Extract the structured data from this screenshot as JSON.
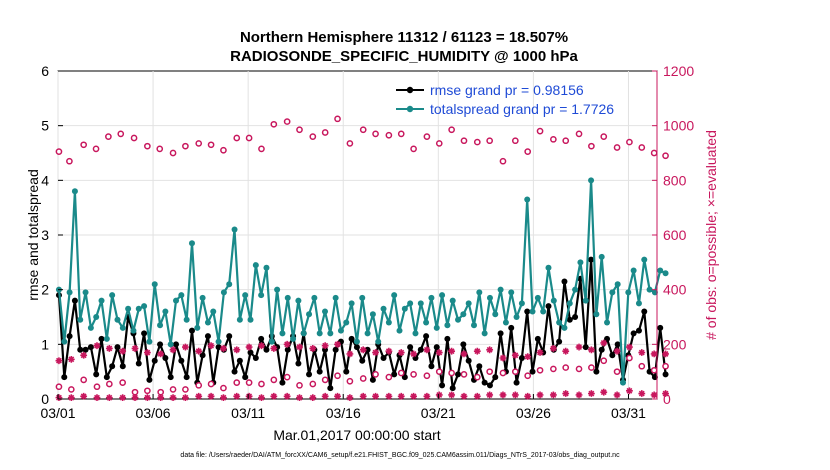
{
  "colors": {
    "rmse": "#000000",
    "spread": "#1a8a8a",
    "obs": "#c8175d",
    "legend_text": "#1f4bd6"
  },
  "chart_data": {
    "type": "line",
    "title": "Northern Hemisphere 11312 / 61123 = 18.507%",
    "subtitle": "RADIOSONDE_SPECIFIC_HUMIDITY @ 1000 hPa",
    "xlabel": "Mar.01,2017 00:00:00 start",
    "ylabel": "rmse and totalspread",
    "y2label": "# of obs: o=possible; ×=evaluated",
    "footnote": "data file: /Users/raeder/DAI/ATM_forcXX/CAM6_setup/f.e21.FHIST_BGC.f09_025.CAM6assim.011/Diags_NTrS_2017-03/obs_diag_output.nc",
    "xlim": [
      0,
      31.5
    ],
    "ylim": [
      0,
      6
    ],
    "y2lim": [
      0,
      1200
    ],
    "xticks": [
      0,
      5,
      10,
      15,
      20,
      25,
      30
    ],
    "xtick_labels": [
      "03/01",
      "03/06",
      "03/11",
      "03/16",
      "03/21",
      "03/26",
      "03/31"
    ],
    "yticks": [
      0,
      1,
      2,
      3,
      4,
      5,
      6
    ],
    "y2ticks": [
      0,
      200,
      400,
      600,
      800,
      1000,
      1200
    ],
    "legend": [
      "rmse grand pr = 0.98156",
      "totalspread grand pr = 1.7726"
    ],
    "series": [
      {
        "name": "rmse",
        "axis": "left",
        "style": "line-dot",
        "values": [
          1.9,
          0.4,
          1.15,
          1.8,
          0.9,
          0.9,
          0.95,
          0.45,
          1.1,
          0.4,
          0.6,
          0.95,
          0.6,
          1.5,
          1.2,
          0.65,
          1.2,
          0.35,
          0.7,
          1.0,
          0.75,
          0.4,
          1.0,
          0.7,
          0.4,
          1.25,
          0.3,
          0.8,
          1.15,
          0.3,
          0.95,
          0.9,
          1.15,
          0.5,
          0.7,
          0.4,
          0.85,
          0.75,
          1.1,
          0.9,
          1.15,
          0.95,
          0.3,
          0.9,
          1.15,
          0.65,
          1.2,
          0.45,
          0.9,
          0.5,
          0.9,
          0.2,
          0.9,
          1.05,
          0.5,
          1.1,
          0.95,
          0.7,
          0.9,
          0.35,
          1.0,
          0.75,
          0.85,
          0.45,
          0.8,
          0.4,
          0.95,
          0.75,
          0.9,
          1.15,
          0.6,
          0.95,
          0.25,
          1.1,
          0.2,
          0.45,
          1.0,
          0.7,
          0.35,
          0.6,
          0.3,
          0.25,
          0.4,
          1.2,
          0.5,
          1.3,
          0.3,
          0.75,
          1.6,
          0.5,
          1.1,
          0.85,
          1.7,
          0.9,
          1.05,
          2.15,
          1.45,
          1.5,
          2.2,
          0.95,
          2.55,
          0.5,
          0.9,
          1.1,
          0.8,
          1.0,
          0.35,
          0.8,
          1.2,
          1.25,
          1.6,
          0.5,
          0.4,
          1.3,
          0.45
        ]
      },
      {
        "name": "totalspread",
        "axis": "left",
        "style": "line-dot",
        "values": [
          2.0,
          1.05,
          1.95,
          3.8,
          1.45,
          1.95,
          1.3,
          1.5,
          1.8,
          1.1,
          1.9,
          1.45,
          1.3,
          1.65,
          1.25,
          1.65,
          1.7,
          1.05,
          2.1,
          1.35,
          1.6,
          1.0,
          1.8,
          1.9,
          1.45,
          2.85,
          1.3,
          1.85,
          1.4,
          1.6,
          1.05,
          1.95,
          2.1,
          3.1,
          1.45,
          1.9,
          1.45,
          2.45,
          1.9,
          2.4,
          1.05,
          2.0,
          1.2,
          1.85,
          1.1,
          1.8,
          1.2,
          1.55,
          1.85,
          1.2,
          1.6,
          1.2,
          1.85,
          1.25,
          1.4,
          1.75,
          1.05,
          1.85,
          1.2,
          1.55,
          1.05,
          1.65,
          1.4,
          1.9,
          1.25,
          1.65,
          1.75,
          1.2,
          1.75,
          1.4,
          1.85,
          1.3,
          1.9,
          1.35,
          1.8,
          1.45,
          1.55,
          1.75,
          1.35,
          1.95,
          1.2,
          1.85,
          1.55,
          2.0,
          1.4,
          1.95,
          1.5,
          1.75,
          3.65,
          1.6,
          1.85,
          1.6,
          2.4,
          1.8,
          1.4,
          1.3,
          1.75,
          2.0,
          2.5,
          1.8,
          4.0,
          1.55,
          2.6,
          1.4,
          1.95,
          2.1,
          0.3,
          1.95,
          2.35,
          1.75,
          2.55,
          2.0,
          1.95,
          2.35,
          2.3
        ]
      },
      {
        "name": "obs possible",
        "axis": "right",
        "style": "circle",
        "values": [
          {
            "x": 0.05,
            "y": 905
          },
          {
            "x": 0.6,
            "y": 870
          },
          {
            "x": 1.35,
            "y": 930
          },
          {
            "x": 2.0,
            "y": 915
          },
          {
            "x": 2.65,
            "y": 960
          },
          {
            "x": 3.3,
            "y": 970
          },
          {
            "x": 4.0,
            "y": 955
          },
          {
            "x": 4.7,
            "y": 925
          },
          {
            "x": 5.35,
            "y": 915
          },
          {
            "x": 6.05,
            "y": 900
          },
          {
            "x": 6.7,
            "y": 925
          },
          {
            "x": 7.4,
            "y": 935
          },
          {
            "x": 8.05,
            "y": 930
          },
          {
            "x": 8.7,
            "y": 910
          },
          {
            "x": 9.4,
            "y": 955
          },
          {
            "x": 10.05,
            "y": 955
          },
          {
            "x": 10.7,
            "y": 915
          },
          {
            "x": 11.35,
            "y": 1005
          },
          {
            "x": 12.05,
            "y": 1015
          },
          {
            "x": 12.7,
            "y": 985
          },
          {
            "x": 13.4,
            "y": 960
          },
          {
            "x": 14.05,
            "y": 975
          },
          {
            "x": 14.7,
            "y": 1025
          },
          {
            "x": 15.35,
            "y": 935
          },
          {
            "x": 16.05,
            "y": 985
          },
          {
            "x": 16.7,
            "y": 970
          },
          {
            "x": 17.4,
            "y": 965
          },
          {
            "x": 18.05,
            "y": 970
          },
          {
            "x": 18.7,
            "y": 915
          },
          {
            "x": 19.4,
            "y": 960
          },
          {
            "x": 20.05,
            "y": 935
          },
          {
            "x": 20.7,
            "y": 985
          },
          {
            "x": 21.35,
            "y": 945
          },
          {
            "x": 22.05,
            "y": 940
          },
          {
            "x": 22.7,
            "y": 945
          },
          {
            "x": 23.4,
            "y": 870
          },
          {
            "x": 24.05,
            "y": 945
          },
          {
            "x": 24.7,
            "y": 905
          },
          {
            "x": 25.35,
            "y": 980
          },
          {
            "x": 26.05,
            "y": 950
          },
          {
            "x": 26.7,
            "y": 945
          },
          {
            "x": 27.4,
            "y": 970
          },
          {
            "x": 28.05,
            "y": 925
          },
          {
            "x": 28.7,
            "y": 960
          },
          {
            "x": 29.4,
            "y": 920
          },
          {
            "x": 30.05,
            "y": 940
          },
          {
            "x": 30.7,
            "y": 920
          },
          {
            "x": 31.35,
            "y": 900
          },
          {
            "x": 31.95,
            "y": 890
          }
        ]
      },
      {
        "name": "obs possible 06Z/18Z",
        "axis": "right",
        "style": "circle",
        "values": [
          {
            "x": 0.05,
            "y": 45
          },
          {
            "x": 0.7,
            "y": 35
          },
          {
            "x": 1.35,
            "y": 70
          },
          {
            "x": 2.05,
            "y": 45
          },
          {
            "x": 2.7,
            "y": 55
          },
          {
            "x": 3.4,
            "y": 60
          },
          {
            "x": 4.05,
            "y": 25
          },
          {
            "x": 4.7,
            "y": 30
          },
          {
            "x": 5.4,
            "y": 25
          },
          {
            "x": 6.05,
            "y": 35
          },
          {
            "x": 6.7,
            "y": 35
          },
          {
            "x": 7.4,
            "y": 50
          },
          {
            "x": 8.05,
            "y": 55
          },
          {
            "x": 8.7,
            "y": 40
          },
          {
            "x": 9.4,
            "y": 60
          },
          {
            "x": 10.05,
            "y": 60
          },
          {
            "x": 10.7,
            "y": 55
          },
          {
            "x": 11.35,
            "y": 70
          },
          {
            "x": 12.05,
            "y": 80
          },
          {
            "x": 12.7,
            "y": 50
          },
          {
            "x": 13.4,
            "y": 55
          },
          {
            "x": 14.05,
            "y": 70
          },
          {
            "x": 14.7,
            "y": 85
          },
          {
            "x": 15.35,
            "y": 65
          },
          {
            "x": 16.05,
            "y": 75
          },
          {
            "x": 16.7,
            "y": 90
          },
          {
            "x": 17.4,
            "y": 80
          },
          {
            "x": 18.05,
            "y": 95
          },
          {
            "x": 18.7,
            "y": 90
          },
          {
            "x": 19.4,
            "y": 85
          },
          {
            "x": 20.05,
            "y": 100
          },
          {
            "x": 20.7,
            "y": 95
          },
          {
            "x": 21.35,
            "y": 90
          },
          {
            "x": 22.05,
            "y": 80
          },
          {
            "x": 22.7,
            "y": 100
          },
          {
            "x": 23.4,
            "y": 95
          },
          {
            "x": 24.05,
            "y": 100
          },
          {
            "x": 24.7,
            "y": 85
          },
          {
            "x": 25.35,
            "y": 105
          },
          {
            "x": 26.05,
            "y": 110
          },
          {
            "x": 26.7,
            "y": 115
          },
          {
            "x": 27.4,
            "y": 110
          },
          {
            "x": 28.05,
            "y": 115
          },
          {
            "x": 28.7,
            "y": 140
          },
          {
            "x": 29.4,
            "y": 100
          },
          {
            "x": 30.05,
            "y": 150
          },
          {
            "x": 30.7,
            "y": 120
          },
          {
            "x": 31.35,
            "y": 105
          },
          {
            "x": 31.95,
            "y": 120
          }
        ]
      },
      {
        "name": "obs evaluated",
        "axis": "right",
        "style": "star",
        "values": [
          {
            "x": 0.05,
            "y": 140
          },
          {
            "x": 0.7,
            "y": 145
          },
          {
            "x": 1.35,
            "y": 160
          },
          {
            "x": 2.05,
            "y": 195
          },
          {
            "x": 2.7,
            "y": 185
          },
          {
            "x": 3.4,
            "y": 175
          },
          {
            "x": 4.05,
            "y": 185
          },
          {
            "x": 4.7,
            "y": 170
          },
          {
            "x": 5.4,
            "y": 165
          },
          {
            "x": 6.05,
            "y": 180
          },
          {
            "x": 6.7,
            "y": 190
          },
          {
            "x": 7.4,
            "y": 175
          },
          {
            "x": 8.05,
            "y": 195
          },
          {
            "x": 8.7,
            "y": 185
          },
          {
            "x": 9.4,
            "y": 180
          },
          {
            "x": 10.05,
            "y": 190
          },
          {
            "x": 10.7,
            "y": 195
          },
          {
            "x": 11.35,
            "y": 185
          },
          {
            "x": 12.05,
            "y": 200
          },
          {
            "x": 12.7,
            "y": 190
          },
          {
            "x": 13.4,
            "y": 185
          },
          {
            "x": 14.05,
            "y": 195
          },
          {
            "x": 14.7,
            "y": 200
          },
          {
            "x": 15.35,
            "y": 165
          },
          {
            "x": 16.05,
            "y": 180
          },
          {
            "x": 16.7,
            "y": 170
          },
          {
            "x": 17.4,
            "y": 175
          },
          {
            "x": 18.05,
            "y": 170
          },
          {
            "x": 18.7,
            "y": 165
          },
          {
            "x": 19.4,
            "y": 180
          },
          {
            "x": 20.05,
            "y": 170
          },
          {
            "x": 20.7,
            "y": 175
          },
          {
            "x": 21.35,
            "y": 165
          },
          {
            "x": 22.05,
            "y": 175
          },
          {
            "x": 22.7,
            "y": 180
          },
          {
            "x": 23.4,
            "y": 150
          },
          {
            "x": 24.05,
            "y": 160
          },
          {
            "x": 24.7,
            "y": 155
          },
          {
            "x": 25.35,
            "y": 170
          },
          {
            "x": 26.05,
            "y": 185
          },
          {
            "x": 26.7,
            "y": 175
          },
          {
            "x": 27.4,
            "y": 190
          },
          {
            "x": 28.05,
            "y": 180
          },
          {
            "x": 28.7,
            "y": 205
          },
          {
            "x": 29.4,
            "y": 175
          },
          {
            "x": 30.05,
            "y": 190
          },
          {
            "x": 30.7,
            "y": 170
          },
          {
            "x": 31.35,
            "y": 165
          },
          {
            "x": 31.95,
            "y": 165
          }
        ]
      },
      {
        "name": "obs evaluated 06Z/18Z",
        "axis": "right",
        "style": "star",
        "values": [
          {
            "x": 0.05,
            "y": 5
          },
          {
            "x": 0.7,
            "y": 5
          },
          {
            "x": 1.35,
            "y": 10
          },
          {
            "x": 2.05,
            "y": 5
          },
          {
            "x": 2.7,
            "y": 5
          },
          {
            "x": 3.4,
            "y": 5
          },
          {
            "x": 4.05,
            "y": 5
          },
          {
            "x": 4.7,
            "y": 5
          },
          {
            "x": 5.4,
            "y": 5
          },
          {
            "x": 6.05,
            "y": 5
          },
          {
            "x": 6.7,
            "y": 5
          },
          {
            "x": 7.4,
            "y": 10
          },
          {
            "x": 8.05,
            "y": 10
          },
          {
            "x": 8.7,
            "y": 5
          },
          {
            "x": 9.4,
            "y": 10
          },
          {
            "x": 10.05,
            "y": 10
          },
          {
            "x": 10.7,
            "y": 5
          },
          {
            "x": 11.35,
            "y": 10
          },
          {
            "x": 12.05,
            "y": 10
          },
          {
            "x": 12.7,
            "y": 5
          },
          {
            "x": 13.4,
            "y": 5
          },
          {
            "x": 14.05,
            "y": 10
          },
          {
            "x": 14.7,
            "y": 10
          },
          {
            "x": 15.35,
            "y": 5
          },
          {
            "x": 16.05,
            "y": 10
          },
          {
            "x": 16.7,
            "y": 10
          },
          {
            "x": 17.4,
            "y": 10
          },
          {
            "x": 18.05,
            "y": 10
          },
          {
            "x": 18.7,
            "y": 10
          },
          {
            "x": 19.4,
            "y": 10
          },
          {
            "x": 20.05,
            "y": 15
          },
          {
            "x": 20.7,
            "y": 15
          },
          {
            "x": 21.35,
            "y": 10
          },
          {
            "x": 22.05,
            "y": 10
          },
          {
            "x": 22.7,
            "y": 15
          },
          {
            "x": 23.4,
            "y": 15
          },
          {
            "x": 24.05,
            "y": 15
          },
          {
            "x": 24.7,
            "y": 10
          },
          {
            "x": 25.35,
            "y": 15
          },
          {
            "x": 26.05,
            "y": 15
          },
          {
            "x": 26.7,
            "y": 20
          },
          {
            "x": 27.4,
            "y": 15
          },
          {
            "x": 28.05,
            "y": 20
          },
          {
            "x": 28.7,
            "y": 25
          },
          {
            "x": 29.4,
            "y": 15
          },
          {
            "x": 30.05,
            "y": 30
          },
          {
            "x": 30.7,
            "y": 20
          },
          {
            "x": 31.35,
            "y": 15
          },
          {
            "x": 31.95,
            "y": 20
          }
        ]
      }
    ]
  }
}
